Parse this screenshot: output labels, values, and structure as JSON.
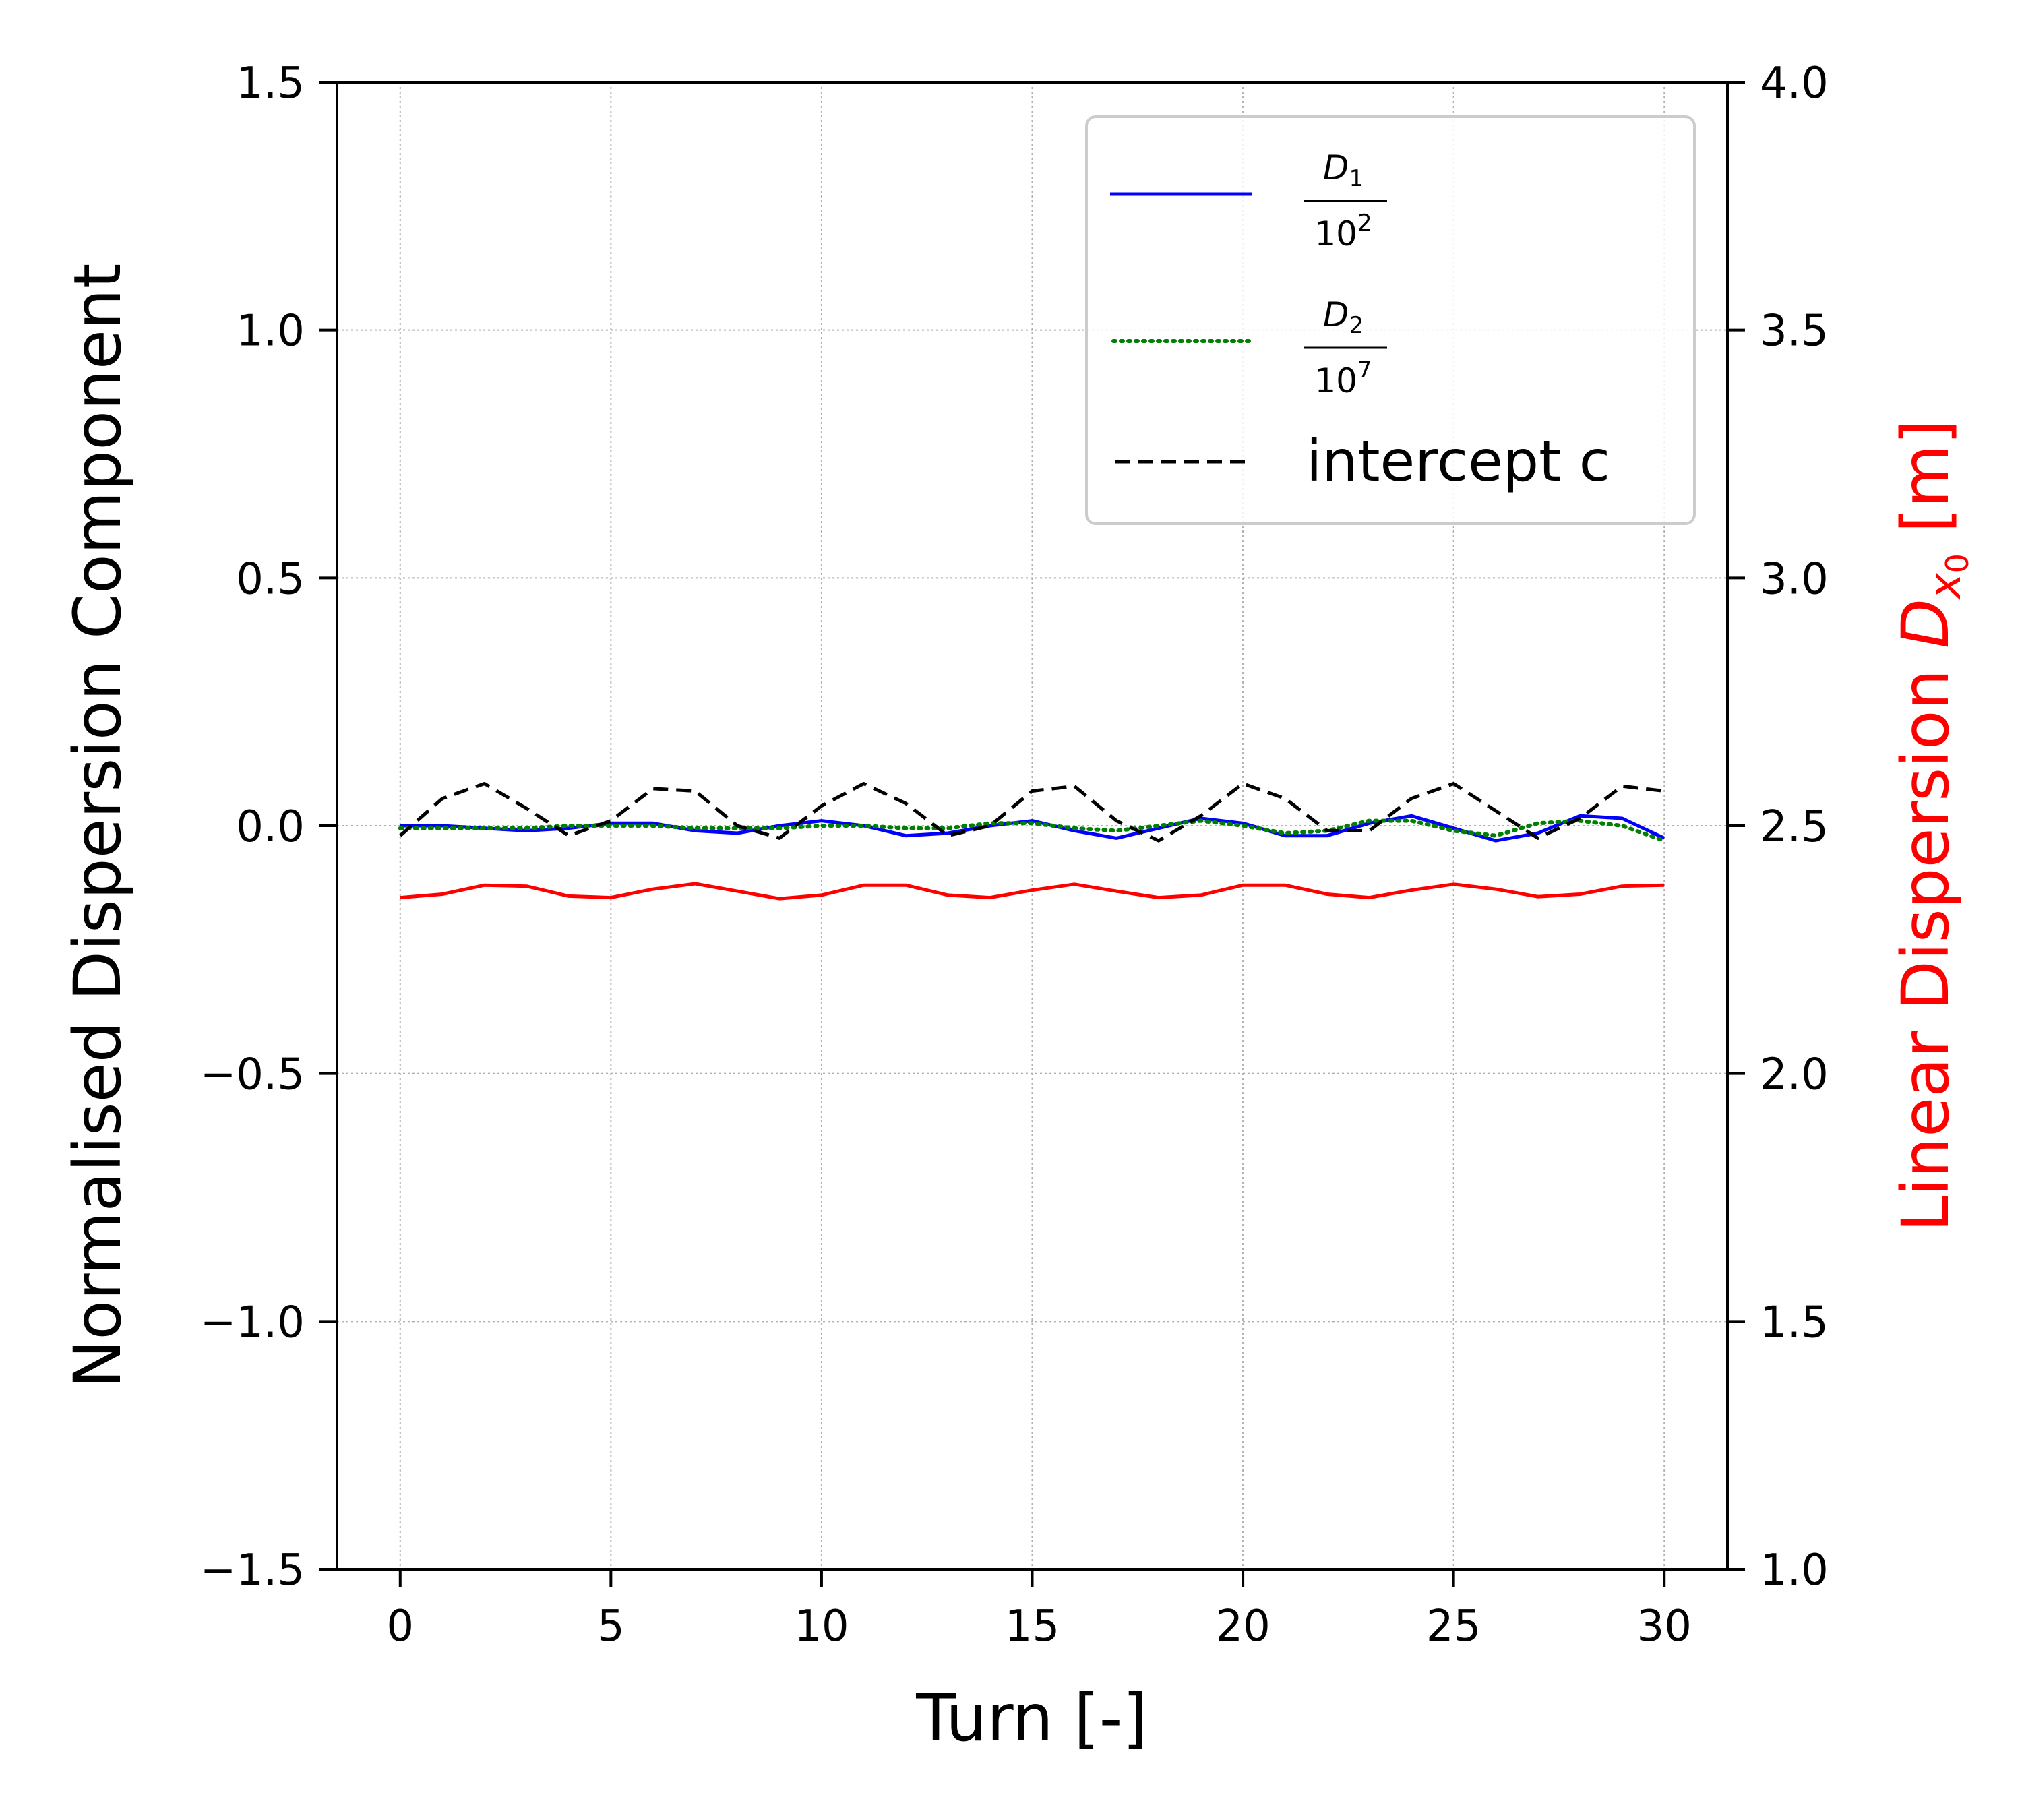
{
  "chart_data": {
    "type": "line",
    "xlabel": "Turn [-]",
    "ylabel": "Normalised Dispersion Component",
    "y2label": "Linear Dispersion D_x0 [m]",
    "xlim": [
      -1.5,
      31.5
    ],
    "ylim": [
      -1.5,
      1.5
    ],
    "y2lim": [
      1.0,
      4.0
    ],
    "grid": true,
    "legend_position": "top-right",
    "x_ticks": [
      0,
      5,
      10,
      15,
      20,
      25,
      30
    ],
    "x_tick_labels": [
      "0",
      "5",
      "10",
      "15",
      "20",
      "25",
      "30"
    ],
    "y_ticks": [
      -1.5,
      -1.0,
      -0.5,
      0.0,
      0.5,
      1.0,
      1.5
    ],
    "y_tick_labels": [
      "−1.5",
      "−1.0",
      "−0.5",
      "0.0",
      "0.5",
      "1.0",
      "1.5"
    ],
    "y2_ticks": [
      1.0,
      1.5,
      2.0,
      2.5,
      3.0,
      3.5,
      4.0
    ],
    "y2_tick_labels": [
      "1.0",
      "1.5",
      "2.0",
      "2.5",
      "3.0",
      "3.5",
      "4.0"
    ],
    "x": [
      0,
      1,
      2,
      3,
      4,
      5,
      6,
      7,
      8,
      9,
      10,
      11,
      12,
      13,
      14,
      15,
      16,
      17,
      18,
      19,
      20,
      21,
      22,
      23,
      24,
      25,
      26,
      27,
      28,
      29,
      30
    ],
    "series": [
      {
        "name": "D1 / 10^2",
        "axis": "left",
        "color": "#0000ff",
        "style": "solid",
        "values": [
          0.0,
          0.0,
          -0.005,
          -0.01,
          -0.005,
          0.005,
          0.005,
          -0.01,
          -0.015,
          0.0,
          0.01,
          0.0,
          -0.02,
          -0.015,
          0.0,
          0.01,
          -0.01,
          -0.025,
          -0.005,
          0.015,
          0.005,
          -0.02,
          -0.02,
          0.005,
          0.02,
          -0.005,
          -0.03,
          -0.015,
          0.02,
          0.015,
          -0.025
        ]
      },
      {
        "name": "D2 / 10^7",
        "axis": "left",
        "color": "#008000",
        "style": "dotted",
        "values": [
          -0.005,
          -0.005,
          -0.005,
          -0.005,
          0.0,
          0.0,
          0.0,
          -0.005,
          -0.005,
          -0.005,
          0.0,
          0.0,
          -0.005,
          -0.005,
          0.005,
          0.005,
          -0.005,
          -0.01,
          0.0,
          0.01,
          0.0,
          -0.015,
          -0.01,
          0.01,
          0.01,
          -0.01,
          -0.02,
          0.005,
          0.01,
          0.0,
          -0.03
        ]
      },
      {
        "name": "intercept c",
        "axis": "left",
        "color": "#000000",
        "style": "dashed",
        "values": [
          -0.02,
          0.055,
          0.085,
          0.035,
          -0.02,
          0.01,
          0.075,
          0.07,
          0.0,
          -0.025,
          0.04,
          0.085,
          0.045,
          -0.02,
          0.0,
          0.07,
          0.08,
          0.01,
          -0.03,
          0.02,
          0.085,
          0.055,
          -0.01,
          -0.01,
          0.055,
          0.085,
          0.03,
          -0.025,
          0.015,
          0.08,
          0.07
        ]
      },
      {
        "name": "Linear Dispersion",
        "axis": "right",
        "color": "#ff0000",
        "style": "solid",
        "values": [
          2.355,
          2.362,
          2.38,
          2.378,
          2.358,
          2.355,
          2.372,
          2.383,
          2.368,
          2.353,
          2.36,
          2.38,
          2.38,
          2.36,
          2.355,
          2.37,
          2.382,
          2.368,
          2.355,
          2.36,
          2.38,
          2.38,
          2.362,
          2.355,
          2.37,
          2.382,
          2.372,
          2.357,
          2.362,
          2.378,
          2.38
        ]
      }
    ],
    "legend": {
      "entries": [
        {
          "kind": "frac",
          "num_letter": "D",
          "num_sub": "1",
          "den_base": "10",
          "den_exp": "2"
        },
        {
          "kind": "frac",
          "num_letter": "D",
          "num_sub": "2",
          "den_base": "10",
          "den_exp": "7"
        },
        {
          "kind": "text",
          "label": "intercept c"
        }
      ]
    },
    "y2label_parts": {
      "prefix": "Linear Dispersion ",
      "sym": "D",
      "sub": "x",
      "subsub": "0",
      "suffix": " [m]"
    }
  }
}
